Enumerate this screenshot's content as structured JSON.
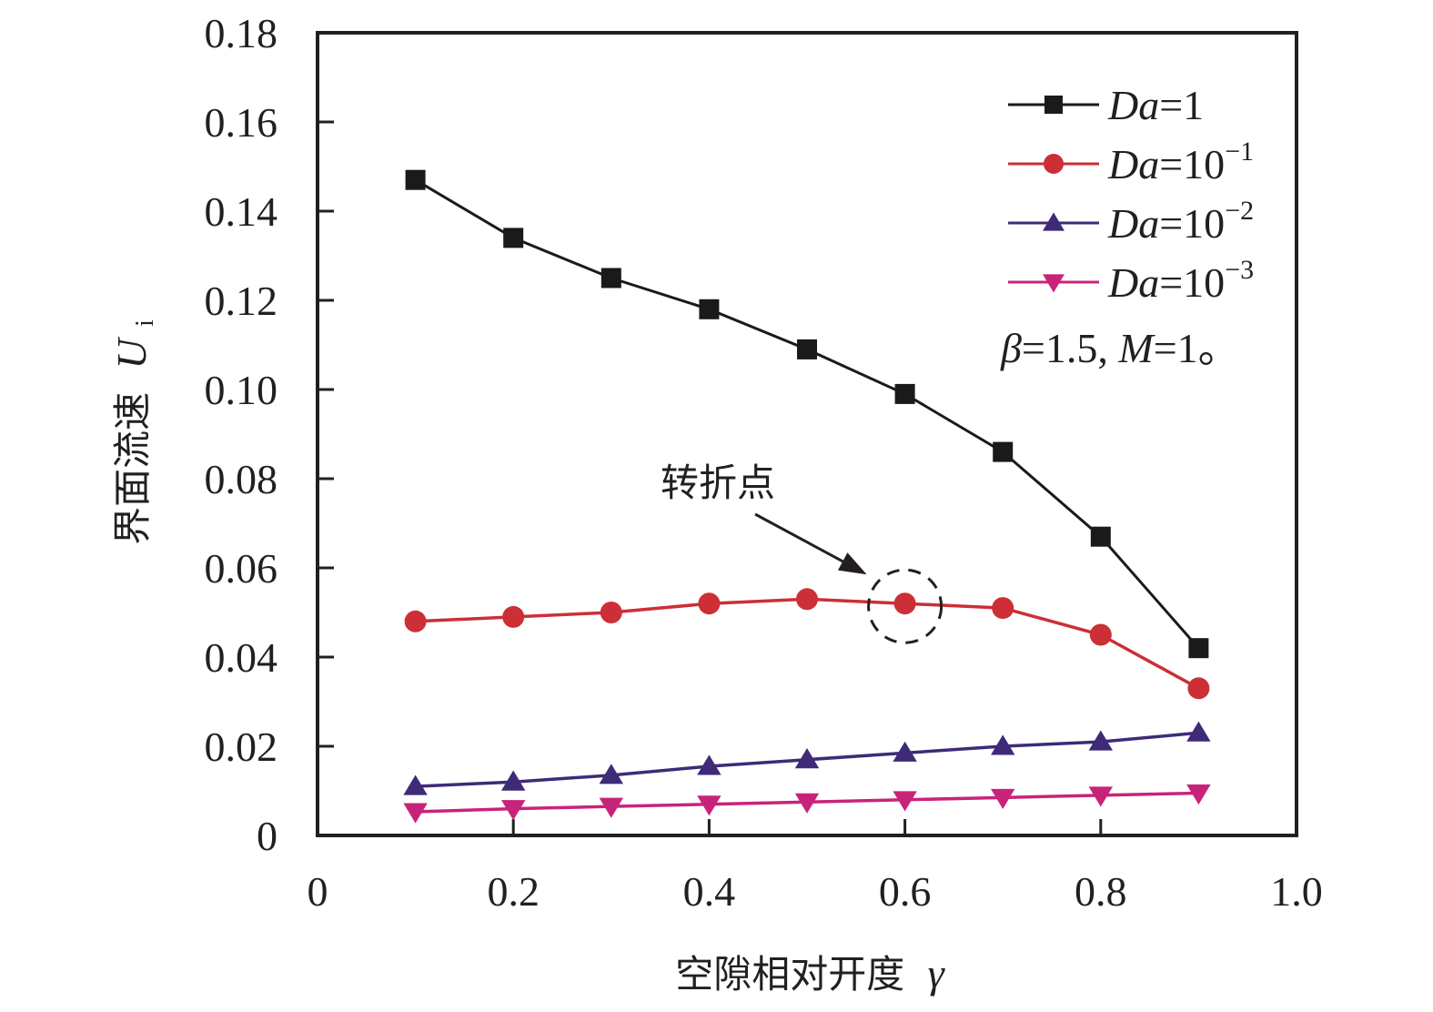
{
  "chart_data": {
    "type": "line",
    "title": "",
    "xlabel": "空隙相对开度",
    "xlabel_symbol": "γ",
    "ylabel": "界面流速",
    "ylabel_symbol": "U",
    "ylabel_subscript": "i",
    "xlim": [
      0,
      1.0
    ],
    "ylim": [
      0,
      0.18
    ],
    "grid": false,
    "x_ticks": [
      0,
      0.2,
      0.4,
      0.6,
      0.8,
      1.0
    ],
    "x_tick_labels": [
      "0",
      "0.2",
      "0.4",
      "0.6",
      "0.8",
      "1.0"
    ],
    "y_ticks": [
      0,
      0.02,
      0.04,
      0.06,
      0.08,
      0.1,
      0.12,
      0.14,
      0.16,
      0.18
    ],
    "y_tick_labels": [
      "0",
      "0.02",
      "0.04",
      "0.06",
      "0.08",
      "0.10",
      "0.12",
      "0.14",
      "0.16",
      "0.18"
    ],
    "x": [
      0.1,
      0.2,
      0.3,
      0.4,
      0.5,
      0.6,
      0.7,
      0.8,
      0.9
    ],
    "series": [
      {
        "name": "Da=1",
        "label_var": "Da",
        "label_eq": "=1",
        "label_exp": "",
        "marker": "square",
        "color": "#1a1a1a",
        "values": [
          0.147,
          0.134,
          0.125,
          0.118,
          0.109,
          0.099,
          0.086,
          0.067,
          0.042
        ]
      },
      {
        "name": "Da=10^-1",
        "label_var": "Da",
        "label_eq": "=10",
        "label_exp": "−1",
        "marker": "circle",
        "color": "#cc2f36",
        "values": [
          0.048,
          0.049,
          0.05,
          0.052,
          0.053,
          0.052,
          0.051,
          0.045,
          0.033
        ]
      },
      {
        "name": "Da=10^-2",
        "label_var": "Da",
        "label_eq": "=10",
        "label_exp": "−2",
        "marker": "triangle-up",
        "color": "#3f2a78",
        "values": [
          0.011,
          0.012,
          0.0135,
          0.0155,
          0.017,
          0.0185,
          0.02,
          0.021,
          0.023
        ]
      },
      {
        "name": "Da=10^-3",
        "label_var": "Da",
        "label_eq": "=10",
        "label_exp": "−3",
        "marker": "triangle-down",
        "color": "#c8237a",
        "values": [
          0.0053,
          0.006,
          0.0065,
          0.007,
          0.0075,
          0.008,
          0.0085,
          0.009,
          0.0095
        ]
      }
    ],
    "legend_position": "top-right",
    "params_note": {
      "beta_sym": "β",
      "beta_val": "=1.5, ",
      "m_sym": "M",
      "m_val": "=1。"
    },
    "annotation": {
      "text": "转折点",
      "target_series": 1,
      "target_x": 0.6
    }
  }
}
